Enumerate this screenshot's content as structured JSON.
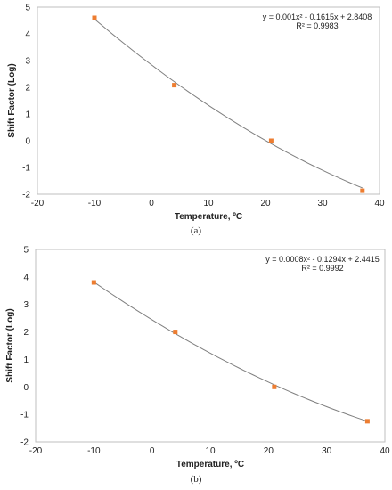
{
  "chart_data": [
    {
      "type": "scatter",
      "caption": "(a)",
      "xlabel": "Temperature, ºC",
      "ylabel": "Shift Factor (Log)",
      "xlim": [
        -20,
        40
      ],
      "ylim": [
        -2,
        5
      ],
      "x_ticks": [
        -20,
        -10,
        0,
        10,
        20,
        30,
        40
      ],
      "y_ticks": [
        -2,
        -1,
        0,
        1,
        2,
        3,
        4,
        5
      ],
      "grid": false,
      "marker_color": "#ED7D31",
      "trendline_color": "#7F7F7F",
      "series": [
        {
          "x": [
            -10,
            4,
            21,
            37
          ],
          "y": [
            4.6,
            2.08,
            0.0,
            -1.87
          ]
        }
      ],
      "trendline": {
        "type": "polynomial",
        "coefficients": [
          0.001,
          -0.1615,
          2.8408
        ],
        "x_range": [
          -10,
          37
        ]
      },
      "equation": "y = 0.001x² - 0.1615x + 2.8408",
      "r_squared": "R² = 0.9983"
    },
    {
      "type": "scatter",
      "caption": "(b)",
      "xlabel": "Temperature, ºC",
      "ylabel": "Shift Factor (Log)",
      "xlim": [
        -20,
        40
      ],
      "ylim": [
        -2,
        5
      ],
      "x_ticks": [
        -20,
        -10,
        0,
        10,
        20,
        30,
        40
      ],
      "y_ticks": [
        -2,
        -1,
        0,
        1,
        2,
        3,
        4,
        5
      ],
      "grid": false,
      "marker_color": "#ED7D31",
      "trendline_color": "#7F7F7F",
      "series": [
        {
          "x": [
            -10,
            4,
            21,
            37
          ],
          "y": [
            3.8,
            2.0,
            0.0,
            -1.25
          ]
        }
      ],
      "trendline": {
        "type": "polynomial",
        "coefficients": [
          0.0008,
          -0.1294,
          2.4415
        ],
        "x_range": [
          -10,
          37
        ]
      },
      "equation": "y = 0.0008x² - 0.1294x + 2.4415",
      "r_squared": "R² = 0.9992"
    }
  ]
}
